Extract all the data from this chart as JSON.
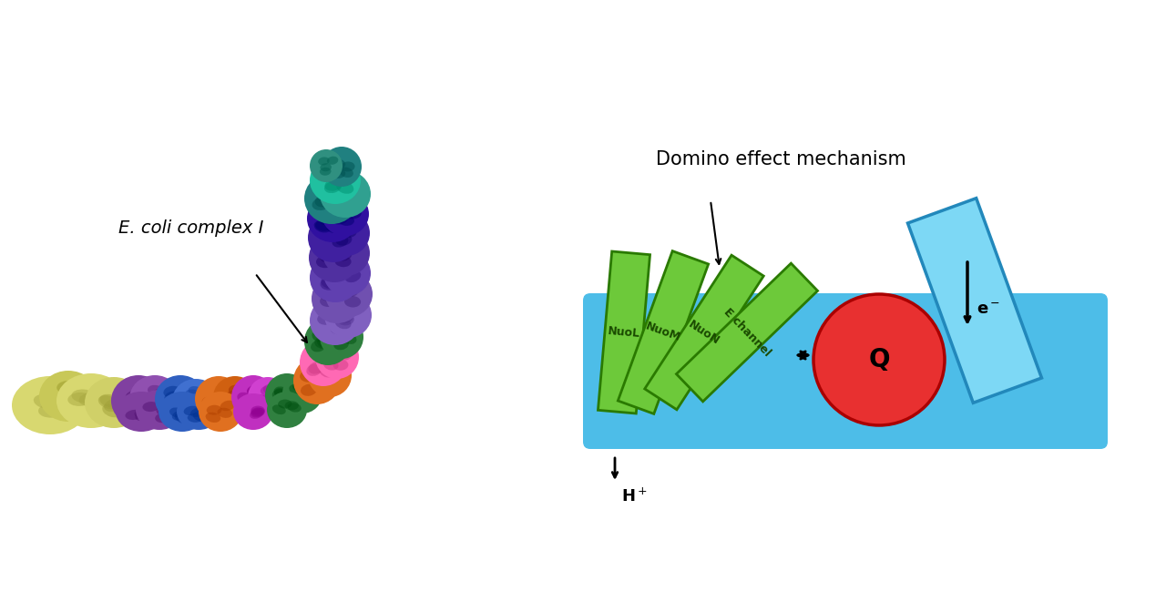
{
  "bg_color": "#ffffff",
  "ecoli_label": "E. coli complex I",
  "domino_title": "Domino effect mechanism",
  "membrane_color": "#4DBDE8",
  "membrane_edge": "#2288BB",
  "green_color": "#6DC93A",
  "green_edge_color": "#2A7A00",
  "red_color": "#E83030",
  "red_edge_color": "#AA0000",
  "light_blue_color": "#7DD8F5",
  "light_blue_edge_color": "#2288BB",
  "domino_labels": [
    "NuoL",
    "NuoM",
    "NuoN",
    "E channel"
  ],
  "subunit_colors_horiz": [
    "#D8D870",
    "#D8D870",
    "#C8C860",
    "#D8D870",
    "#8040A0",
    "#8040A0",
    "#8040A0",
    "#4060C0",
    "#4060C0",
    "#E07020",
    "#E07020",
    "#D040C0",
    "#D040C0",
    "#308040",
    "#308040",
    "#E05040",
    "#E05040",
    "#E08020",
    "#E08020"
  ],
  "subunit_colors_vert": [
    "#E07020",
    "#FF69B4",
    "#308040",
    "#8060C0",
    "#8060C0",
    "#7050B0",
    "#6040B0",
    "#6040B0",
    "#5030A0",
    "#5030A0",
    "#4020A0",
    "#3010A0",
    "#208080",
    "#308060"
  ]
}
